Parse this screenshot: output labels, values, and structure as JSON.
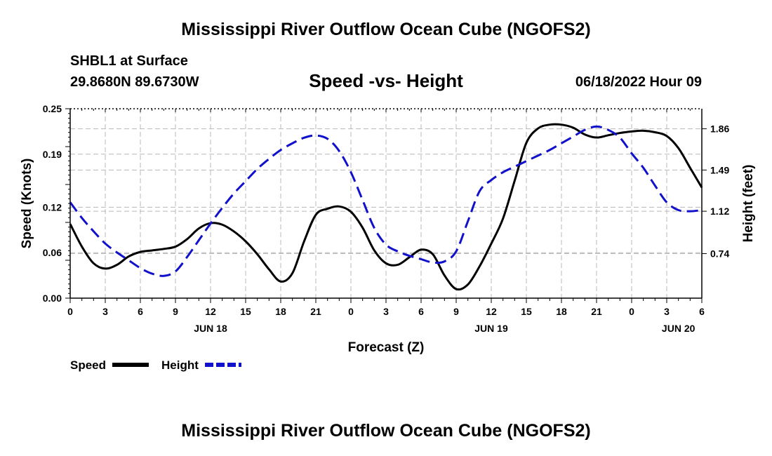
{
  "header": {
    "title": "Mississippi River Outflow Ocean Cube (NGOFS2)",
    "station": "SHBL1 at Surface",
    "coords": "29.8680N  89.6730W",
    "subtitle": "Speed -vs- Height",
    "datetime": "06/18/2022 Hour 09"
  },
  "footer": {
    "title": "Mississippi River Outflow Ocean Cube (NGOFS2)"
  },
  "chart_data": {
    "type": "line",
    "xlabel": "Forecast (Z)",
    "ylabel_left": "Speed (Knots)",
    "ylabel_right": "Height (feet)",
    "x_range_hours": [
      0,
      54
    ],
    "x_ticks": [
      {
        "hour": 0,
        "label": "0"
      },
      {
        "hour": 3,
        "label": "3"
      },
      {
        "hour": 6,
        "label": "6"
      },
      {
        "hour": 9,
        "label": "9"
      },
      {
        "hour": 12,
        "label": "12"
      },
      {
        "hour": 15,
        "label": "15"
      },
      {
        "hour": 18,
        "label": "18"
      },
      {
        "hour": 21,
        "label": "21"
      },
      {
        "hour": 24,
        "label": "0"
      },
      {
        "hour": 27,
        "label": "3"
      },
      {
        "hour": 30,
        "label": "6"
      },
      {
        "hour": 33,
        "label": "9"
      },
      {
        "hour": 36,
        "label": "12"
      },
      {
        "hour": 39,
        "label": "15"
      },
      {
        "hour": 42,
        "label": "18"
      },
      {
        "hour": 45,
        "label": "21"
      },
      {
        "hour": 48,
        "label": "0"
      },
      {
        "hour": 51,
        "label": "3"
      },
      {
        "hour": 54,
        "label": "6"
      }
    ],
    "day_labels": [
      {
        "hour": 12,
        "label": "JUN 18"
      },
      {
        "hour": 36,
        "label": "JUN 19"
      },
      {
        "hour": 52,
        "label": "JUN 20"
      }
    ],
    "y_left_range": [
      0,
      0.25
    ],
    "y_left_ticks": [
      "0.00",
      "0.06",
      "0.12",
      "0.19",
      "0.25"
    ],
    "y_right_range": [
      0.34,
      2.04
    ],
    "y_right_ticks": [
      {
        "value": 0.74,
        "label": "0.74"
      },
      {
        "value": 1.12,
        "label": "1.12"
      },
      {
        "value": 1.49,
        "label": "1.49"
      },
      {
        "value": 1.86,
        "label": "1.86"
      }
    ],
    "grid": true,
    "series": [
      {
        "name": "Speed",
        "axis": "left",
        "color": "#000000",
        "style": "solid",
        "points": [
          [
            0,
            0.098
          ],
          [
            1,
            0.068
          ],
          [
            2,
            0.046
          ],
          [
            3,
            0.039
          ],
          [
            4,
            0.044
          ],
          [
            5,
            0.055
          ],
          [
            6,
            0.061
          ],
          [
            7,
            0.063
          ],
          [
            8,
            0.065
          ],
          [
            9,
            0.068
          ],
          [
            10,
            0.078
          ],
          [
            11,
            0.092
          ],
          [
            12,
            0.099
          ],
          [
            13,
            0.097
          ],
          [
            14,
            0.088
          ],
          [
            15,
            0.075
          ],
          [
            16,
            0.058
          ],
          [
            17,
            0.038
          ],
          [
            18,
            0.022
          ],
          [
            19,
            0.033
          ],
          [
            20,
            0.075
          ],
          [
            21,
            0.11
          ],
          [
            22,
            0.118
          ],
          [
            23,
            0.121
          ],
          [
            24,
            0.114
          ],
          [
            25,
            0.093
          ],
          [
            26,
            0.063
          ],
          [
            27,
            0.046
          ],
          [
            28,
            0.044
          ],
          [
            29,
            0.054
          ],
          [
            30,
            0.064
          ],
          [
            31,
            0.058
          ],
          [
            32,
            0.03
          ],
          [
            33,
            0.012
          ],
          [
            34,
            0.018
          ],
          [
            35,
            0.042
          ],
          [
            36,
            0.072
          ],
          [
            37,
            0.105
          ],
          [
            38,
            0.155
          ],
          [
            39,
            0.205
          ],
          [
            40,
            0.224
          ],
          [
            41,
            0.229
          ],
          [
            42,
            0.229
          ],
          [
            43,
            0.225
          ],
          [
            44,
            0.216
          ],
          [
            45,
            0.212
          ],
          [
            46,
            0.215
          ],
          [
            47,
            0.218
          ],
          [
            48,
            0.22
          ],
          [
            49,
            0.221
          ],
          [
            50,
            0.219
          ],
          [
            51,
            0.214
          ],
          [
            52,
            0.198
          ],
          [
            53,
            0.172
          ],
          [
            54,
            0.146
          ]
        ]
      },
      {
        "name": "Height",
        "axis": "right",
        "color": "#1111cc",
        "style": "dashed",
        "points": [
          [
            0,
            1.2
          ],
          [
            1,
            1.06
          ],
          [
            2,
            0.94
          ],
          [
            3,
            0.83
          ],
          [
            4,
            0.75
          ],
          [
            5,
            0.68
          ],
          [
            6,
            0.61
          ],
          [
            7,
            0.56
          ],
          [
            8,
            0.54
          ],
          [
            9,
            0.58
          ],
          [
            10,
            0.71
          ],
          [
            11,
            0.86
          ],
          [
            12,
            1.01
          ],
          [
            13,
            1.15
          ],
          [
            14,
            1.28
          ],
          [
            15,
            1.39
          ],
          [
            16,
            1.5
          ],
          [
            17,
            1.59
          ],
          [
            18,
            1.67
          ],
          [
            19,
            1.73
          ],
          [
            20,
            1.78
          ],
          [
            21,
            1.8
          ],
          [
            22,
            1.77
          ],
          [
            23,
            1.66
          ],
          [
            24,
            1.47
          ],
          [
            25,
            1.22
          ],
          [
            26,
            0.97
          ],
          [
            27,
            0.82
          ],
          [
            28,
            0.76
          ],
          [
            29,
            0.72
          ],
          [
            30,
            0.69
          ],
          [
            31,
            0.66
          ],
          [
            32,
            0.67
          ],
          [
            33,
            0.76
          ],
          [
            34,
            1.03
          ],
          [
            35,
            1.3
          ],
          [
            36,
            1.4
          ],
          [
            37,
            1.47
          ],
          [
            38,
            1.52
          ],
          [
            39,
            1.57
          ],
          [
            40,
            1.62
          ],
          [
            41,
            1.67
          ],
          [
            42,
            1.73
          ],
          [
            43,
            1.79
          ],
          [
            44,
            1.85
          ],
          [
            45,
            1.88
          ],
          [
            46,
            1.85
          ],
          [
            47,
            1.78
          ],
          [
            48,
            1.64
          ],
          [
            49,
            1.51
          ],
          [
            50,
            1.35
          ],
          [
            51,
            1.2
          ],
          [
            52,
            1.13
          ],
          [
            53,
            1.12
          ],
          [
            54,
            1.13
          ]
        ]
      }
    ],
    "legend": [
      {
        "label": "Speed",
        "color": "#000000",
        "style": "solid"
      },
      {
        "label": "Height",
        "color": "#1111cc",
        "style": "dashed"
      }
    ],
    "legend_position": "bottom-left"
  }
}
